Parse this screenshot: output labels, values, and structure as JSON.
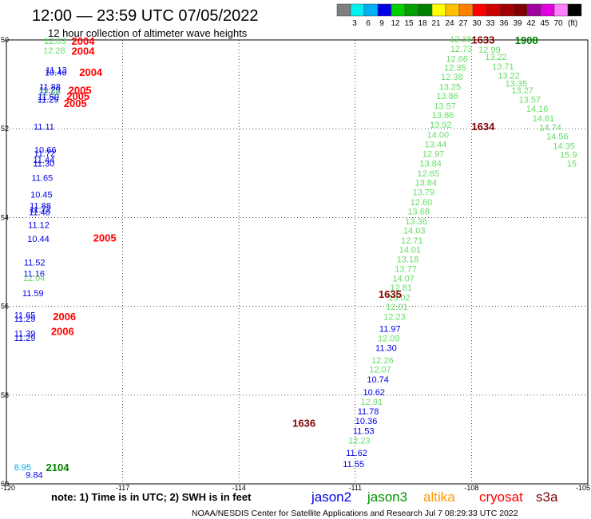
{
  "title": "12:00 — 23:59 UTC 07/05/2022",
  "subtitle": "12 hour collection of altimeter wave heights",
  "legend": {
    "colors": [
      "#7f7f7f",
      "#00f0f0",
      "#00b0f0",
      "#0000e6",
      "#00d000",
      "#00a000",
      "#008000",
      "#ffff00",
      "#ffc000",
      "#ff8000",
      "#ff0000",
      "#d00000",
      "#a00000",
      "#800000",
      "#a000a0",
      "#e000e0",
      "#ff80ff",
      "#000000"
    ],
    "labels": [
      "3",
      "6",
      "9",
      "12",
      "15",
      "18",
      "21",
      "24",
      "27",
      "30",
      "33",
      "36",
      "39",
      "42",
      "45",
      "70"
    ],
    "unit": "(ft)"
  },
  "axes": {
    "x_ticks": [
      -120,
      -117,
      -114,
      -111,
      -108,
      -105
    ],
    "x_tick_labels": [
      "-120",
      "-117",
      "-114",
      "-111",
      "-108",
      "-105"
    ],
    "y_ticks": [
      50,
      52,
      54,
      56,
      58,
      60
    ],
    "y_tick_labels": [
      "50",
      "52",
      "54",
      "56",
      "58",
      "60"
    ]
  },
  "note": "note: 1) Time is in UTC; 2) SWH is in feet",
  "satellites": [
    {
      "name": "jason2",
      "color": "#0000e6"
    },
    {
      "name": "jason3",
      "color": "#009000"
    },
    {
      "name": "altika",
      "color": "#ff9900"
    },
    {
      "name": "cryosat",
      "color": "#ff0000"
    },
    {
      "name": "s3a",
      "color": "#800000"
    }
  ],
  "footer": "NOAA/NESDIS Center for Satellite Applications and Research   Jul  7 08:29:33 UTC 2022",
  "chart_data": {
    "type": "scatter",
    "xlabel": "",
    "ylabel": "",
    "xlim": [
      -120,
      -105
    ],
    "ylim": [
      50,
      60
    ],
    "y_inverted": true,
    "grid": true,
    "points": [
      {
        "lon": -119.03,
        "lat": 50.02,
        "value": "12.83",
        "color": "#66dd66"
      },
      {
        "lon": -119.05,
        "lat": 50.23,
        "value": "12.28",
        "color": "#66dd66"
      },
      {
        "lon": -118.99,
        "lat": 50.67,
        "value": "11.13",
        "color": "#0000e6"
      },
      {
        "lon": -119.01,
        "lat": 50.73,
        "value": "10.46",
        "color": "#0000e6"
      },
      {
        "lon": -119.15,
        "lat": 51.05,
        "value": "11.88",
        "color": "#0000e6"
      },
      {
        "lon": -119.16,
        "lat": 51.12,
        "value": "11.29",
        "color": "#0000e6"
      },
      {
        "lon": -119.17,
        "lat": 51.18,
        "value": "12.90",
        "color": "#66dd66"
      },
      {
        "lon": -119.19,
        "lat": 51.28,
        "value": "11.50",
        "color": "#0000e6"
      },
      {
        "lon": -119.2,
        "lat": 51.34,
        "value": "11.29",
        "color": "#0000e6"
      },
      {
        "lon": -119.3,
        "lat": 51.95,
        "value": "11.11",
        "color": "#0000e6"
      },
      {
        "lon": -119.28,
        "lat": 52.47,
        "value": "10.66",
        "color": "#0000e6"
      },
      {
        "lon": -119.29,
        "lat": 52.55,
        "value": "11.72",
        "color": "#0000e6"
      },
      {
        "lon": -119.31,
        "lat": 52.7,
        "value": "11.44",
        "color": "#0000e6"
      },
      {
        "lon": -119.31,
        "lat": 52.78,
        "value": "11.30",
        "color": "#0000e6"
      },
      {
        "lon": -119.35,
        "lat": 53.1,
        "value": "11.65",
        "color": "#0000e6"
      },
      {
        "lon": -119.38,
        "lat": 53.48,
        "value": "10.45",
        "color": "#0000e6"
      },
      {
        "lon": -119.4,
        "lat": 53.73,
        "value": "11.88",
        "color": "#0000e6"
      },
      {
        "lon": -119.4,
        "lat": 53.81,
        "value": "11.72",
        "color": "#0000e6"
      },
      {
        "lon": -119.42,
        "lat": 53.88,
        "value": "11.40",
        "color": "#0000e6"
      },
      {
        "lon": -119.44,
        "lat": 54.16,
        "value": "11.12",
        "color": "#0000e6"
      },
      {
        "lon": -119.46,
        "lat": 54.48,
        "value": "10.44",
        "color": "#0000e6"
      },
      {
        "lon": -119.55,
        "lat": 55.01,
        "value": "11.52",
        "color": "#0000e6"
      },
      {
        "lon": -119.56,
        "lat": 55.26,
        "value": "11.16",
        "color": "#0000e6"
      },
      {
        "lon": -119.57,
        "lat": 55.36,
        "value": "12.04",
        "color": "#66dd66"
      },
      {
        "lon": -119.59,
        "lat": 55.7,
        "value": "11.59",
        "color": "#0000e6"
      },
      {
        "lon": -119.8,
        "lat": 56.2,
        "value": "11.65",
        "color": "#0000e6"
      },
      {
        "lon": -119.8,
        "lat": 56.28,
        "value": "11.29",
        "color": "#0000e6"
      },
      {
        "lon": -119.8,
        "lat": 56.61,
        "value": "11.39",
        "color": "#0000e6"
      },
      {
        "lon": -119.8,
        "lat": 56.71,
        "value": "11.29",
        "color": "#0000e6"
      },
      {
        "lon": -119.8,
        "lat": 59.62,
        "value": "8.95",
        "color": "#00b0f0"
      },
      {
        "lon": -119.5,
        "lat": 59.79,
        "value": "9.84",
        "color": "#0000e6"
      },
      {
        "lon": -108.56,
        "lat": 49.98,
        "value": "12.38",
        "color": "#66dd66"
      },
      {
        "lon": -108.55,
        "lat": 50.2,
        "value": "12.73",
        "color": "#66dd66"
      },
      {
        "lon": -108.66,
        "lat": 50.42,
        "value": "12.66",
        "color": "#66dd66"
      },
      {
        "lon": -108.71,
        "lat": 50.62,
        "value": "12.35",
        "color": "#66dd66"
      },
      {
        "lon": -108.79,
        "lat": 50.83,
        "value": "12.38",
        "color": "#66dd66"
      },
      {
        "lon": -108.84,
        "lat": 51.05,
        "value": "13.25",
        "color": "#66dd66"
      },
      {
        "lon": -108.91,
        "lat": 51.26,
        "value": "13.86",
        "color": "#66dd66"
      },
      {
        "lon": -108.97,
        "lat": 51.48,
        "value": "13.57",
        "color": "#66dd66"
      },
      {
        "lon": -109.02,
        "lat": 51.69,
        "value": "13.86",
        "color": "#66dd66"
      },
      {
        "lon": -109.08,
        "lat": 51.91,
        "value": "13.92",
        "color": "#66dd66"
      },
      {
        "lon": -109.15,
        "lat": 52.13,
        "value": "14.00",
        "color": "#66dd66"
      },
      {
        "lon": -109.21,
        "lat": 52.35,
        "value": "13.44",
        "color": "#66dd66"
      },
      {
        "lon": -109.27,
        "lat": 52.56,
        "value": "12.97",
        "color": "#66dd66"
      },
      {
        "lon": -109.34,
        "lat": 52.78,
        "value": "13.84",
        "color": "#66dd66"
      },
      {
        "lon": -109.4,
        "lat": 53.0,
        "value": "12.65",
        "color": "#66dd66"
      },
      {
        "lon": -109.46,
        "lat": 53.21,
        "value": "13.84",
        "color": "#66dd66"
      },
      {
        "lon": -109.52,
        "lat": 53.43,
        "value": "13.79",
        "color": "#66dd66"
      },
      {
        "lon": -109.58,
        "lat": 53.65,
        "value": "12.60",
        "color": "#66dd66"
      },
      {
        "lon": -109.65,
        "lat": 53.86,
        "value": "13.68",
        "color": "#66dd66"
      },
      {
        "lon": -109.71,
        "lat": 54.08,
        "value": "13.36",
        "color": "#66dd66"
      },
      {
        "lon": -109.76,
        "lat": 54.29,
        "value": "14.03",
        "color": "#66dd66"
      },
      {
        "lon": -109.82,
        "lat": 54.51,
        "value": "12.71",
        "color": "#66dd66"
      },
      {
        "lon": -109.87,
        "lat": 54.72,
        "value": "14.01",
        "color": "#66dd66"
      },
      {
        "lon": -109.93,
        "lat": 54.94,
        "value": "13.18",
        "color": "#66dd66"
      },
      {
        "lon": -109.98,
        "lat": 55.15,
        "value": "13.77",
        "color": "#66dd66"
      },
      {
        "lon": -110.04,
        "lat": 55.37,
        "value": "14.07",
        "color": "#66dd66"
      },
      {
        "lon": -110.1,
        "lat": 55.58,
        "value": "12.81",
        "color": "#66dd66"
      },
      {
        "lon": -110.15,
        "lat": 55.8,
        "value": "13.02",
        "color": "#66dd66"
      },
      {
        "lon": -110.21,
        "lat": 56.01,
        "value": "12.01",
        "color": "#66dd66"
      },
      {
        "lon": -110.27,
        "lat": 56.23,
        "value": "12.23",
        "color": "#66dd66"
      },
      {
        "lon": -110.38,
        "lat": 56.5,
        "value": "11.97",
        "color": "#0000e6"
      },
      {
        "lon": -110.42,
        "lat": 56.72,
        "value": "12.09",
        "color": "#66dd66"
      },
      {
        "lon": -110.48,
        "lat": 56.93,
        "value": "11.30",
        "color": "#0000e6"
      },
      {
        "lon": -110.58,
        "lat": 57.21,
        "value": "12.26",
        "color": "#66dd66"
      },
      {
        "lon": -110.64,
        "lat": 57.42,
        "value": "12.07",
        "color": "#66dd66"
      },
      {
        "lon": -110.7,
        "lat": 57.64,
        "value": "10.74",
        "color": "#0000e6"
      },
      {
        "lon": -110.8,
        "lat": 57.93,
        "value": "10.62",
        "color": "#0000e6"
      },
      {
        "lon": -110.86,
        "lat": 58.15,
        "value": "12.91",
        "color": "#66dd66"
      },
      {
        "lon": -110.94,
        "lat": 58.36,
        "value": "11.78",
        "color": "#0000e6"
      },
      {
        "lon": -111.0,
        "lat": 58.58,
        "value": "10.36",
        "color": "#0000e6"
      },
      {
        "lon": -111.06,
        "lat": 58.8,
        "value": "11.53",
        "color": "#0000e6"
      },
      {
        "lon": -111.18,
        "lat": 59.02,
        "value": "12.23",
        "color": "#66dd66"
      },
      {
        "lon": -111.24,
        "lat": 59.3,
        "value": "11.62",
        "color": "#0000e6"
      },
      {
        "lon": -111.32,
        "lat": 59.55,
        "value": "11.55",
        "color": "#0000e6"
      },
      {
        "lon": -107.82,
        "lat": 50.22,
        "value": "12.99",
        "color": "#66dd66"
      },
      {
        "lon": -107.65,
        "lat": 50.38,
        "value": "13.22",
        "color": "#66dd66"
      },
      {
        "lon": -107.47,
        "lat": 50.59,
        "value": "13.71",
        "color": "#66dd66"
      },
      {
        "lon": -107.32,
        "lat": 50.8,
        "value": "13.22",
        "color": "#66dd66"
      },
      {
        "lon": -107.13,
        "lat": 50.98,
        "value": "13.35",
        "color": "#66dd66"
      },
      {
        "lon": -106.97,
        "lat": 51.13,
        "value": "13.27",
        "color": "#66dd66"
      },
      {
        "lon": -106.78,
        "lat": 51.34,
        "value": "13.57",
        "color": "#66dd66"
      },
      {
        "lon": -106.59,
        "lat": 51.55,
        "value": "14.16",
        "color": "#66dd66"
      },
      {
        "lon": -106.43,
        "lat": 51.76,
        "value": "14.81",
        "color": "#66dd66"
      },
      {
        "lon": -106.25,
        "lat": 51.97,
        "value": "14.74",
        "color": "#66dd66"
      },
      {
        "lon": -106.07,
        "lat": 52.17,
        "value": "14.56",
        "color": "#66dd66"
      },
      {
        "lon": -105.9,
        "lat": 52.38,
        "value": "14.35",
        "color": "#66dd66"
      },
      {
        "lon": -105.72,
        "lat": 52.58,
        "value": "15.9",
        "color": "#66dd66"
      },
      {
        "lon": -105.54,
        "lat": 52.78,
        "value": "15",
        "color": "#66dd66"
      }
    ],
    "time_labels": [
      {
        "lon": -118.32,
        "lat": 50.02,
        "text": "2004",
        "color": "#ff0000"
      },
      {
        "lon": -118.32,
        "lat": 50.24,
        "text": "2004",
        "color": "#ff0000"
      },
      {
        "lon": -118.12,
        "lat": 50.72,
        "text": "2004",
        "color": "#ff0000"
      },
      {
        "lon": -118.4,
        "lat": 51.12,
        "text": "2005",
        "color": "#ff0000"
      },
      {
        "lon": -118.45,
        "lat": 51.26,
        "text": "2005",
        "color": "#ff0000"
      },
      {
        "lon": -118.52,
        "lat": 51.42,
        "text": "2005",
        "color": "#ff0000"
      },
      {
        "lon": -117.76,
        "lat": 54.45,
        "text": "2005",
        "color": "#ff0000"
      },
      {
        "lon": -118.8,
        "lat": 56.22,
        "text": "2006",
        "color": "#ff0000"
      },
      {
        "lon": -118.85,
        "lat": 56.56,
        "text": "2006",
        "color": "#ff0000"
      },
      {
        "lon": -118.98,
        "lat": 59.62,
        "text": "2104",
        "color": "#008000"
      },
      {
        "lon": -108.0,
        "lat": 51.94,
        "text": "1634",
        "color": "#800000"
      },
      {
        "lon": -110.4,
        "lat": 55.72,
        "text": "1635",
        "color": "#800000"
      },
      {
        "lon": -112.62,
        "lat": 58.62,
        "text": "1636",
        "color": "#800000"
      },
      {
        "lon": -108.0,
        "lat": 49.99,
        "text": "1633",
        "color": "#800000"
      },
      {
        "lon": -106.88,
        "lat": 50.0,
        "text": "1908",
        "color": "#008000"
      }
    ]
  }
}
